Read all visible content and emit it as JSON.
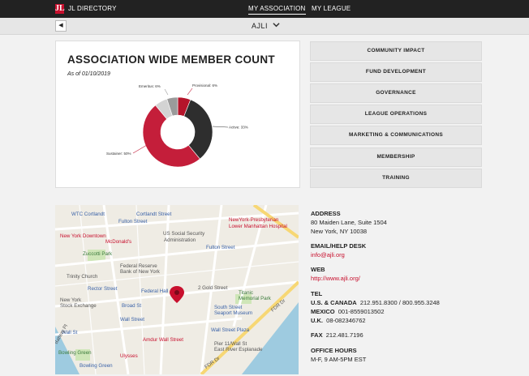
{
  "topbar": {
    "logo": "JL",
    "brand": "JL DIRECTORY",
    "nav": [
      "MY ASSOCIATION",
      "MY LEAGUE"
    ]
  },
  "subbar": {
    "back_icon": "chevron-left-icon",
    "title": "AJLI",
    "dropdown_icon": "chevron-down-icon"
  },
  "chart_data": {
    "type": "pie",
    "title": "ASSOCIATION WIDE MEMBER COUNT",
    "subtitle": "As of 01/10/2019",
    "categories": [
      "Provisional: 6%",
      "Active: 33%",
      "Sustainer: 50%",
      "Emeritus: 6%",
      ""
    ],
    "values": [
      6,
      33,
      50,
      6,
      5
    ],
    "colors": [
      "#b5142a",
      "#2e2e2e",
      "#c41e3a",
      "#d3d3d3",
      "#9a9a9a"
    ]
  },
  "menu": [
    "COMMUNITY IMPACT",
    "FUND DEVELOPMENT",
    "GOVERNANCE",
    "LEAGUE OPERATIONS",
    "MARKETING & COMMUNICATIONS",
    "MEMBERSHIP",
    "TRAINING"
  ],
  "map": {
    "labels": [
      "WTC Cortlandt",
      "Cortlandt Street",
      "Fulton Street",
      "NewYork-Presbyterian",
      "Lower Manhattan Hospital",
      "New York Downtown",
      "McDonald's",
      "US Social Security",
      "Administration",
      "Fulton Street",
      "Zuccotti Park",
      "Federal Reserve",
      "Bank of New York",
      "Trinity Church",
      "Rector Street",
      "Federal Hall",
      "2 Gold Street",
      "Titanic",
      "Memorial Park",
      "New York",
      "Stock Exchange",
      "Broad St",
      "South Street",
      "Seaport Museum",
      "Wall Street",
      "Wall Street Plaza",
      "Wall St",
      "Amdur Wall Street",
      "Pier 11/Wall St",
      "East River Esplanade",
      "Bowling Green",
      "Ulysses",
      "FDR Dr",
      "FDR Dr",
      "Battery Pl",
      "Bowling Green"
    ],
    "pin_icon": "map-pin-icon"
  },
  "contact": {
    "address_h": "ADDRESS",
    "address_1": "80 Maiden Lane, Suite 1504",
    "address_2": "New York, NY 10038",
    "email_h": "EMAIL/HELP DESK",
    "email": "info@ajli.org",
    "web_h": "WEB",
    "web": "http://www.ajli.org/",
    "tel_h": "TEL",
    "tel_us_label": "U.S. & CANADA",
    "tel_us": "212.951.8300 / 800.955.3248",
    "tel_mx_label": "MEXICO",
    "tel_mx": "001-8559013502",
    "tel_uk_label": "U.K.",
    "tel_uk": "08-082346762",
    "fax_label": "FAX",
    "fax": "212.481.7196",
    "hours_h": "OFFICE HOURS",
    "hours": "M-F, 9 AM-5PM EST"
  }
}
